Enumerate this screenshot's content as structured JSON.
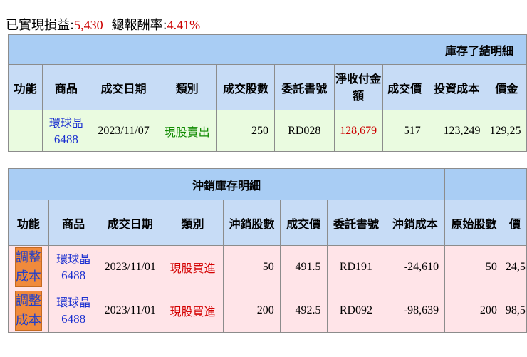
{
  "summary": {
    "realized_label": "已實現損益:",
    "realized_value": "5,430",
    "roi_label": "總報酬率:",
    "roi_value": "4.41%"
  },
  "closed_table": {
    "title": "庫存了結明細",
    "headers": [
      "功能",
      "商品",
      "成交日期",
      "類別",
      "成交股數",
      "委託書號",
      "淨收付金額",
      "成交價",
      "投資成本",
      "價金"
    ],
    "rows": [
      {
        "function": "",
        "product_name": "環球晶",
        "product_code": "6488",
        "date": "2023/11/07",
        "type": "現股賣出",
        "shares": "250",
        "order_no": "RD028",
        "net_amount": "128,679",
        "price": "517",
        "cost": "123,249",
        "amount_partial": "129,25"
      }
    ]
  },
  "offset_table": {
    "title": "沖銷庫存明細",
    "headers": [
      "功能",
      "商品",
      "成交日期",
      "類別",
      "沖銷股數",
      "成交價",
      "委託書號",
      "沖銷成本",
      "原始股數",
      "價"
    ],
    "rows": [
      {
        "function": "調整成本",
        "product_name": "環球晶",
        "product_code": "6488",
        "date": "2023/11/01",
        "type": "現股買進",
        "shares": "50",
        "price": "491.5",
        "order_no": "RD191",
        "offset_cost": "-24,610",
        "orig_shares": "50",
        "partial": "24,5"
      },
      {
        "function": "調整成本",
        "product_name": "環球晶",
        "product_code": "6488",
        "date": "2023/11/01",
        "type": "現股買進",
        "shares": "200",
        "price": "492.5",
        "order_no": "RD092",
        "offset_cost": "-98,639",
        "orig_shares": "200",
        "partial": "98,5"
      }
    ]
  },
  "colors": {
    "header_blue": "#a9cdf4",
    "row_green": "#eafbe0",
    "row_pink": "#ffe4e8",
    "button_orange": "#f08a3c",
    "value_red": "#cc0000",
    "sell_green": "#0f8a00",
    "link_blue": "#1a2fd0"
  }
}
